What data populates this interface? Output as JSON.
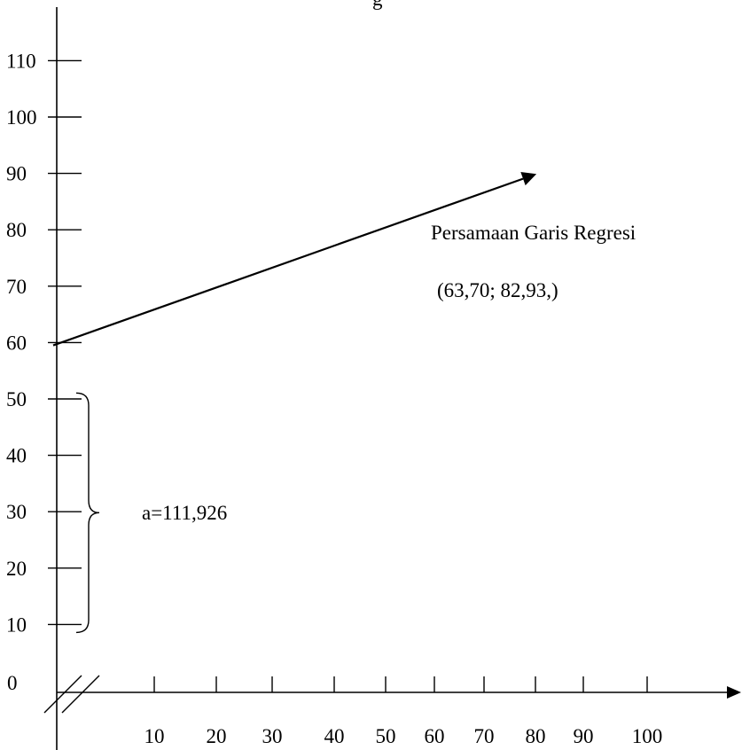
{
  "chart_data": {
    "type": "line",
    "title_fragment": "g",
    "x_ticks": [
      10,
      20,
      30,
      40,
      50,
      60,
      70,
      80,
      90,
      100
    ],
    "y_ticks": [
      110,
      100,
      90,
      80,
      70,
      60,
      50,
      40,
      30,
      20,
      10
    ],
    "origin_label": "0",
    "series": [
      {
        "x": [
          0,
          80
        ],
        "y": [
          59.5,
          90
        ]
      }
    ],
    "annotations": {
      "line_label": "Persamaan Garis Regresi",
      "point_label": "(63,70; 82,93,)",
      "brace_label": "a=111,926"
    },
    "brace_range": [
      10,
      52
    ],
    "axis_breaks": true,
    "grid": false
  }
}
